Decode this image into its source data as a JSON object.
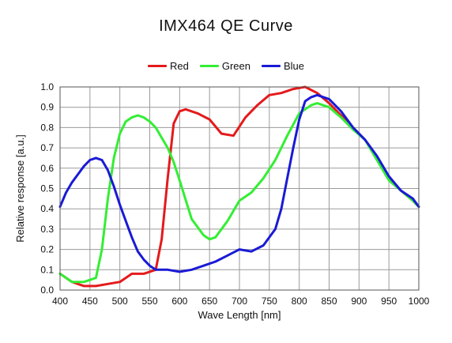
{
  "chart_data": {
    "type": "line",
    "title": "IMX464 QE Curve",
    "xlabel": "Wave Length [nm]",
    "ylabel": "Relative response [a.u.]",
    "xlim": [
      400,
      1000
    ],
    "ylim": [
      0,
      1.0
    ],
    "x_ticks": [
      "400",
      "450",
      "500",
      "550",
      "600",
      "650",
      "700",
      "750",
      "800",
      "850",
      "900",
      "950",
      "1000"
    ],
    "y_ticks": [
      "0.0",
      "0.1",
      "0.2",
      "0.3",
      "0.4",
      "0.5",
      "0.6",
      "0.7",
      "0.8",
      "0.9",
      "1.0"
    ],
    "grid": true,
    "legend_position": "top-center",
    "series": [
      {
        "name": "Red",
        "color": "#e41a1c",
        "x": [
          400,
          420,
          440,
          460,
          480,
          500,
          520,
          540,
          560,
          570,
          580,
          590,
          600,
          610,
          630,
          650,
          670,
          690,
          710,
          730,
          750,
          770,
          790,
          810,
          830,
          850,
          870,
          890,
          910,
          930,
          950,
          970,
          990,
          1000
        ],
        "y": [
          0.08,
          0.04,
          0.02,
          0.02,
          0.03,
          0.04,
          0.08,
          0.08,
          0.1,
          0.25,
          0.55,
          0.82,
          0.88,
          0.89,
          0.87,
          0.84,
          0.77,
          0.76,
          0.85,
          0.91,
          0.96,
          0.97,
          0.99,
          1.0,
          0.97,
          0.92,
          0.86,
          0.8,
          0.74,
          0.65,
          0.55,
          0.49,
          0.44,
          0.41
        ]
      },
      {
        "name": "Green",
        "color": "#33ee33",
        "x": [
          400,
          420,
          440,
          460,
          470,
          480,
          490,
          500,
          510,
          520,
          530,
          540,
          550,
          560,
          570,
          580,
          590,
          600,
          620,
          640,
          650,
          660,
          680,
          700,
          720,
          740,
          760,
          780,
          800,
          820,
          830,
          850,
          870,
          890,
          910,
          930,
          950,
          970,
          990,
          1000
        ],
        "y": [
          0.08,
          0.04,
          0.04,
          0.06,
          0.2,
          0.45,
          0.65,
          0.77,
          0.83,
          0.85,
          0.86,
          0.85,
          0.83,
          0.8,
          0.75,
          0.7,
          0.63,
          0.54,
          0.35,
          0.27,
          0.25,
          0.26,
          0.34,
          0.44,
          0.48,
          0.55,
          0.64,
          0.76,
          0.87,
          0.91,
          0.92,
          0.9,
          0.85,
          0.79,
          0.74,
          0.64,
          0.54,
          0.49,
          0.44,
          0.41
        ]
      },
      {
        "name": "Blue",
        "color": "#1a1ad6",
        "x": [
          400,
          410,
          420,
          430,
          440,
          450,
          460,
          470,
          480,
          490,
          500,
          510,
          520,
          530,
          540,
          550,
          560,
          580,
          600,
          620,
          640,
          660,
          680,
          700,
          720,
          740,
          760,
          770,
          780,
          790,
          800,
          810,
          820,
          830,
          850,
          870,
          890,
          910,
          930,
          950,
          970,
          990,
          1000
        ],
        "y": [
          0.41,
          0.48,
          0.53,
          0.57,
          0.61,
          0.64,
          0.65,
          0.64,
          0.59,
          0.51,
          0.42,
          0.34,
          0.26,
          0.19,
          0.15,
          0.12,
          0.1,
          0.1,
          0.09,
          0.1,
          0.12,
          0.14,
          0.17,
          0.2,
          0.19,
          0.22,
          0.3,
          0.4,
          0.55,
          0.7,
          0.84,
          0.93,
          0.95,
          0.96,
          0.94,
          0.88,
          0.8,
          0.74,
          0.66,
          0.56,
          0.49,
          0.45,
          0.41
        ]
      }
    ]
  }
}
